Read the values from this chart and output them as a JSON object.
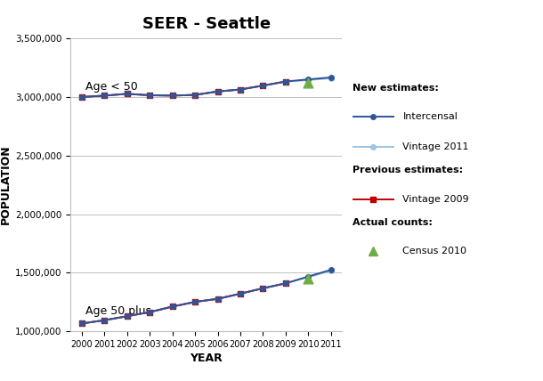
{
  "title": "SEER - Seattle",
  "xlabel": "YEAR",
  "ylabel": "POPULATION",
  "ylim": [
    1000000,
    3500000
  ],
  "xlim": [
    1999.5,
    2011.5
  ],
  "yticks": [
    1000000,
    1500000,
    2000000,
    2500000,
    3000000,
    3500000
  ],
  "xticks": [
    2000,
    2001,
    2002,
    2003,
    2004,
    2005,
    2006,
    2007,
    2008,
    2009,
    2010,
    2011
  ],
  "intercensal_under50": [
    2998000,
    3010000,
    3025000,
    3013000,
    3010000,
    3016000,
    3045000,
    3062000,
    3095000,
    3130000,
    3148000,
    3165000
  ],
  "vintage2011_under50": [
    2998000,
    3010000,
    3025000,
    3013000,
    3010000,
    3016000,
    3045000,
    3062000,
    3095000,
    3130000,
    3142000,
    3158000
  ],
  "vintage2009_under50": [
    2998000,
    3010000,
    3025000,
    3013000,
    3010000,
    3016000,
    3045000,
    3062000,
    3095000,
    3130000
  ],
  "census2010_under50": 3118000,
  "intercensal_50plus": [
    1068000,
    1096000,
    1130000,
    1165000,
    1212000,
    1252000,
    1278000,
    1322000,
    1368000,
    1410000,
    1468000,
    1525000
  ],
  "vintage2011_50plus": [
    1068000,
    1096000,
    1130000,
    1165000,
    1212000,
    1252000,
    1278000,
    1322000,
    1368000,
    1410000,
    1462000,
    1518000
  ],
  "vintage2009_50plus": [
    1068000,
    1096000,
    1130000,
    1165000,
    1212000,
    1252000,
    1278000,
    1322000,
    1368000,
    1410000
  ],
  "census2010_50plus": 1452000,
  "years_full": [
    2000,
    2001,
    2002,
    2003,
    2004,
    2005,
    2006,
    2007,
    2008,
    2009,
    2010,
    2011
  ],
  "years_vintage2009": [
    2000,
    2001,
    2002,
    2003,
    2004,
    2005,
    2006,
    2007,
    2008,
    2009
  ],
  "color_intercensal": "#2F5597",
  "color_vintage2011": "#9DC3E6",
  "color_vintage2009": "#C00000",
  "color_census2010": "#70AD47",
  "bg_color": "#FFFFFF",
  "grid_color": "#BFBFBF",
  "label_under50": "Age < 50",
  "label_50plus": "Age 50 plus",
  "legend_new": "New estimates:",
  "legend_intercensal": "Intercensal",
  "legend_v2011": "Vintage 2011",
  "legend_prev": "Previous estimates:",
  "legend_v2009": "Vintage 2009",
  "legend_actual": "Actual counts:",
  "legend_census": "Census 2010"
}
